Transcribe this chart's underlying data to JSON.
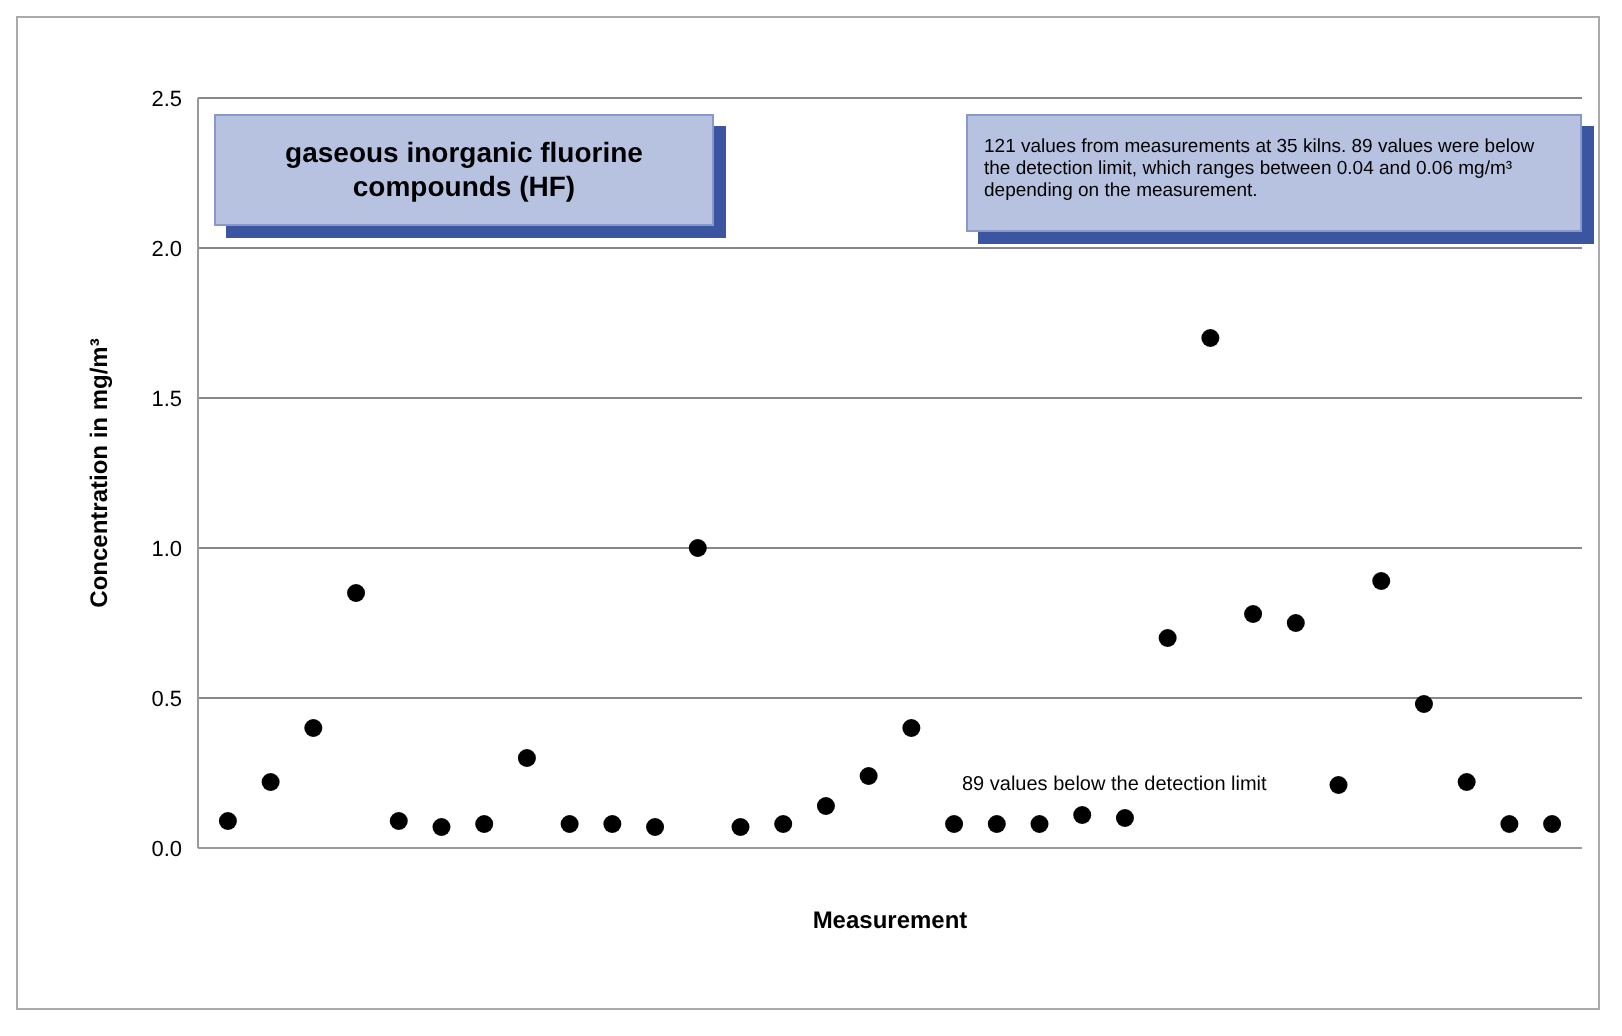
{
  "chart_data": {
    "type": "scatter",
    "title": "gaseous inorganic fluorine compounds (HF)",
    "xlabel": "Measurement",
    "ylabel": "Concentration in mg/m³",
    "annotations": [
      "121 values from measurements at 35 kilns. 89 values were below the detection limit, which ranges between 0.04 and 0.06 mg/m³ depending on the measurement.",
      "89 values below the detection limit"
    ],
    "categories": [
      null,
      null,
      null,
      null,
      null,
      null,
      null,
      null,
      null,
      null,
      null,
      null,
      null,
      null,
      null,
      null,
      null,
      null,
      null,
      null,
      null,
      null,
      null,
      null,
      null,
      null,
      null,
      null,
      null,
      null,
      null,
      null
    ],
    "series": [
      {
        "color": "#000000",
        "values": [
          0.09,
          0.22,
          0.4,
          0.85,
          0.09,
          0.07,
          0.08,
          0.3,
          0.08,
          0.08,
          0.07,
          1.0,
          0.07,
          0.08,
          0.14,
          0.24,
          0.4,
          0.08,
          0.08,
          0.08,
          0.11,
          0.1,
          0.7,
          1.7,
          0.78,
          0.75,
          0.21,
          0.89,
          0.48,
          0.22,
          0.08,
          0.08
        ]
      }
    ],
    "ylim": [
      0,
      2.5
    ],
    "yticks": [
      {
        "value": 0,
        "label": "0.0"
      },
      {
        "value": 0.5,
        "label": "0.5"
      },
      {
        "value": 1,
        "label": "1.0"
      },
      {
        "value": 1.5,
        "label": "1.5"
      },
      {
        "value": 2,
        "label": "2.0"
      },
      {
        "value": 2.5,
        "label": "2.5"
      }
    ],
    "grid": "y",
    "legend": false,
    "marker": "circle",
    "tick_labels": "y"
  }
}
